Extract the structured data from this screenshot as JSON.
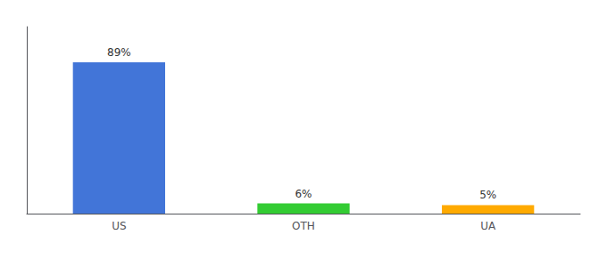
{
  "chart_data": {
    "type": "bar",
    "categories": [
      "US",
      "OTH",
      "UA"
    ],
    "values": [
      89,
      6,
      5
    ],
    "value_labels": [
      "89%",
      "6%",
      "5%"
    ],
    "colors": [
      "#4275d8",
      "#33cc33",
      "#ffaa00"
    ],
    "ylim": [
      0,
      110
    ],
    "data_labels": true,
    "tick_labels": "x",
    "grid": false
  }
}
